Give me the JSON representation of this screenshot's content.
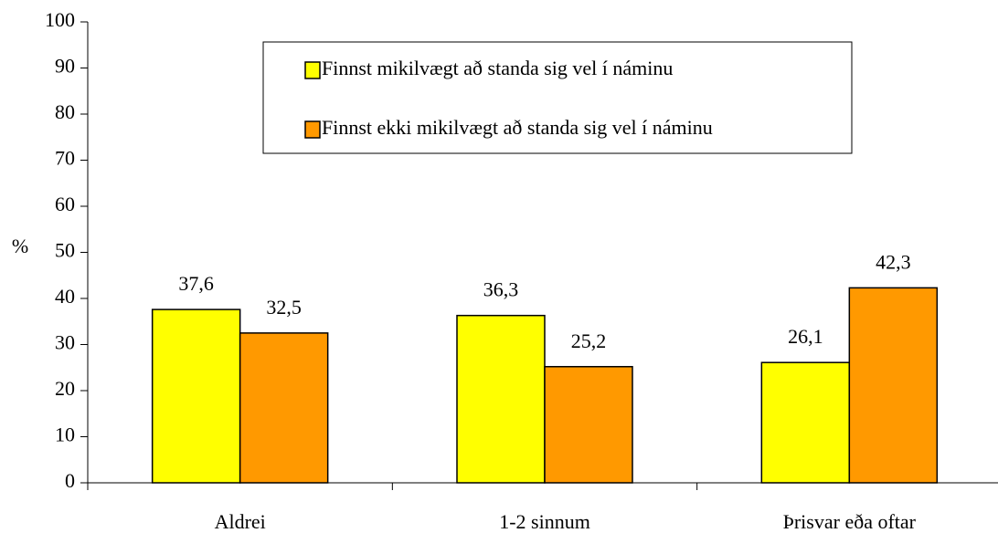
{
  "chart_data": {
    "type": "bar",
    "y_label": "%",
    "categories": [
      "Aldrei",
      "1-2 sinnum",
      "Þrisvar eða oftar"
    ],
    "series": [
      {
        "name": "Finnst mikilvægt að standa sig vel í náminu",
        "color": "#ffff00",
        "values": [
          37.6,
          36.3,
          26.1
        ],
        "value_labels": [
          "37,6",
          "36,3",
          "26,1"
        ]
      },
      {
        "name": "Finnst ekki mikilvægt að standa sig vel í náminu",
        "color": "#ff9900",
        "values": [
          32.5,
          25.2,
          42.3
        ],
        "value_labels": [
          "32,5",
          "25,2",
          "42,3"
        ]
      }
    ],
    "ylim": [
      0,
      100
    ],
    "yticks": [
      0,
      10,
      20,
      30,
      40,
      50,
      60,
      70,
      80,
      90,
      100
    ],
    "grid": false
  }
}
